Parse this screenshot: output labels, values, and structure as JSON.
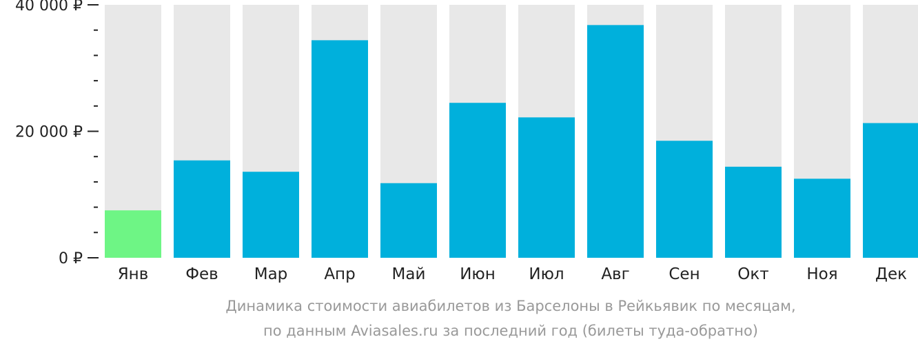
{
  "chart_data": {
    "type": "bar",
    "categories": [
      "Янв",
      "Фев",
      "Мар",
      "Апр",
      "Май",
      "Июн",
      "Июл",
      "Авг",
      "Сен",
      "Окт",
      "Ноя",
      "Дек"
    ],
    "values": [
      7500,
      15400,
      13600,
      34400,
      11800,
      24500,
      22200,
      36800,
      18500,
      14400,
      12500,
      21300
    ],
    "ylim": [
      0,
      40000
    ],
    "yticks": [
      {
        "value": 0,
        "label": "0 ₽"
      },
      {
        "value": 20000,
        "label": "20 000 ₽"
      },
      {
        "value": 40000,
        "label": "40 000 ₽"
      }
    ],
    "minor_tick_step": 4000,
    "highlight_index": 0,
    "colors": {
      "bar": "#00b0dc",
      "highlight": "#6ef585",
      "background_bar": "#e8e8e8",
      "axis": "#222222"
    },
    "grid": false,
    "legend": "none"
  },
  "caption": {
    "line1": "Динамика стоимости авиабилетов из Барселоны в Рейкьявик по месяцам,",
    "line2": "по данным Aviasales.ru за последний год (билеты туда-обратно)"
  }
}
